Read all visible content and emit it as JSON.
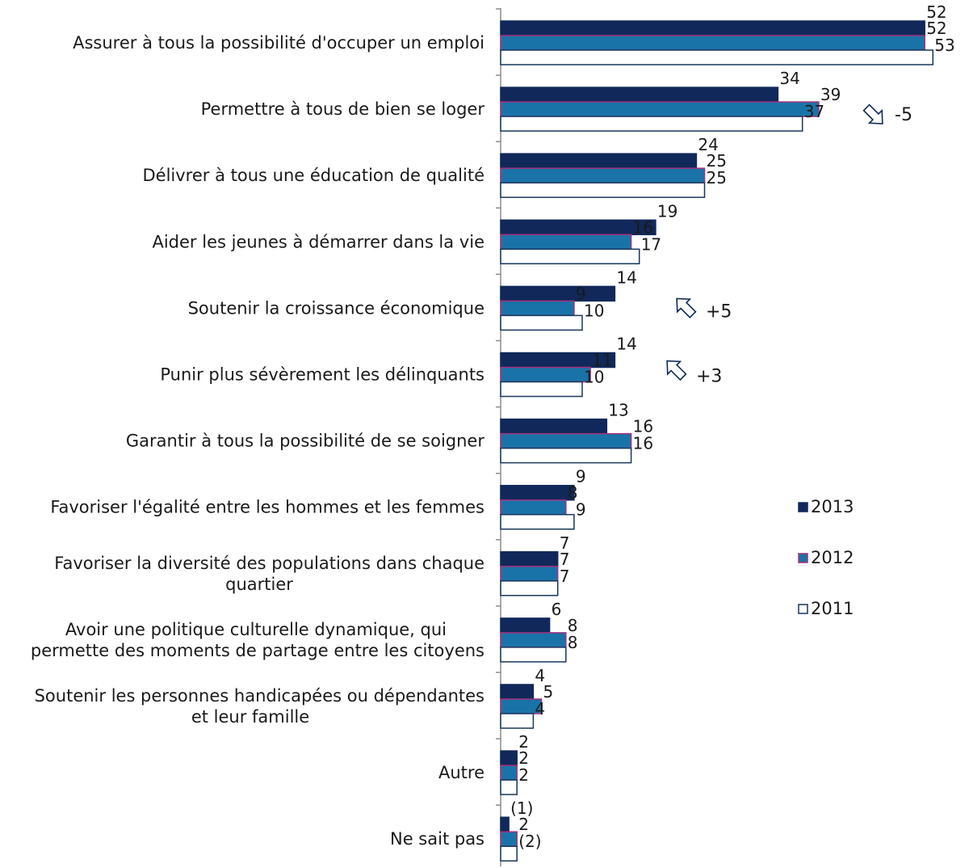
{
  "chart_data": {
    "type": "bar",
    "orientation": "horizontal",
    "categories": [
      "Assurer à tous la possibilité d'occuper un emploi",
      "Permettre à tous de bien se loger",
      "Délivrer à tous une éducation de qualité",
      "Aider les jeunes à démarrer dans la vie",
      "Soutenir la croissance économique",
      "Punir plus sévèrement les délinquants",
      "Garantir à tous la possibilité de se soigner",
      "Favoriser l'égalité entre les hommes et les femmes",
      "Favoriser la diversité des populations dans chaque quartier",
      "Avoir une politique culturelle dynamique, qui permette des moments de partage entre les citoyens",
      "Soutenir les personnes handicapées ou dépendantes et leur famille",
      "Autre",
      "Ne sait pas"
    ],
    "category_lines": [
      [
        "Assurer à tous la possibilité d'occuper un emploi"
      ],
      [
        "Permettre à tous de bien se loger"
      ],
      [
        "Délivrer à tous une éducation de qualité"
      ],
      [
        "Aider les jeunes à démarrer dans la vie"
      ],
      [
        "Soutenir la croissance économique"
      ],
      [
        "Punir plus sévèrement les délinquants"
      ],
      [
        "Garantir à tous la possibilité de se soigner"
      ],
      [
        "Favoriser l'égalité entre les hommes et les femmes"
      ],
      [
        "Favoriser la diversité des populations dans chaque",
        "quartier"
      ],
      [
        "Avoir une politique culturelle dynamique, qui",
        "permette des moments de partage entre les citoyens"
      ],
      [
        "Soutenir les personnes handicapées ou dépendantes",
        "et leur famille"
      ],
      [
        "Autre"
      ],
      [
        "Ne sait pas"
      ]
    ],
    "series": [
      {
        "name": "2013",
        "color": "#10295a",
        "border": "#10295a",
        "values": [
          52,
          34,
          24,
          19,
          14,
          14,
          13,
          9,
          7,
          6,
          4,
          2,
          1
        ],
        "labels": [
          "52",
          "34",
          "24",
          "19",
          "14",
          "14",
          "13",
          "9",
          "7",
          "6",
          "4",
          "2",
          "(1)"
        ]
      },
      {
        "name": "2012",
        "color": "#1a73a8",
        "border": "#a6307a",
        "values": [
          52,
          39,
          25,
          16,
          9,
          11,
          16,
          8,
          7,
          8,
          5,
          2,
          2
        ],
        "labels": [
          "52",
          "39",
          "25",
          "16",
          "9",
          "11",
          "16",
          "8",
          "7",
          "8",
          "5",
          "2",
          "2"
        ]
      },
      {
        "name": "2011",
        "color": "#ffffff",
        "border": "#17365d",
        "values": [
          53,
          37,
          25,
          17,
          10,
          10,
          16,
          9,
          7,
          8,
          4,
          2,
          2
        ],
        "labels": [
          "53",
          "37",
          "25",
          "17",
          "10",
          "10",
          "16",
          "9",
          "7",
          "8",
          "4",
          "2",
          "(2)"
        ]
      }
    ],
    "xlim": [
      0,
      53
    ],
    "legend": "right",
    "grid": false,
    "annotations": [
      {
        "category_index": 1,
        "arrow": "down",
        "text": "-5"
      },
      {
        "category_index": 4,
        "arrow": "up",
        "text": "+5"
      },
      {
        "category_index": 5,
        "arrow": "up",
        "text": "+3"
      }
    ]
  }
}
